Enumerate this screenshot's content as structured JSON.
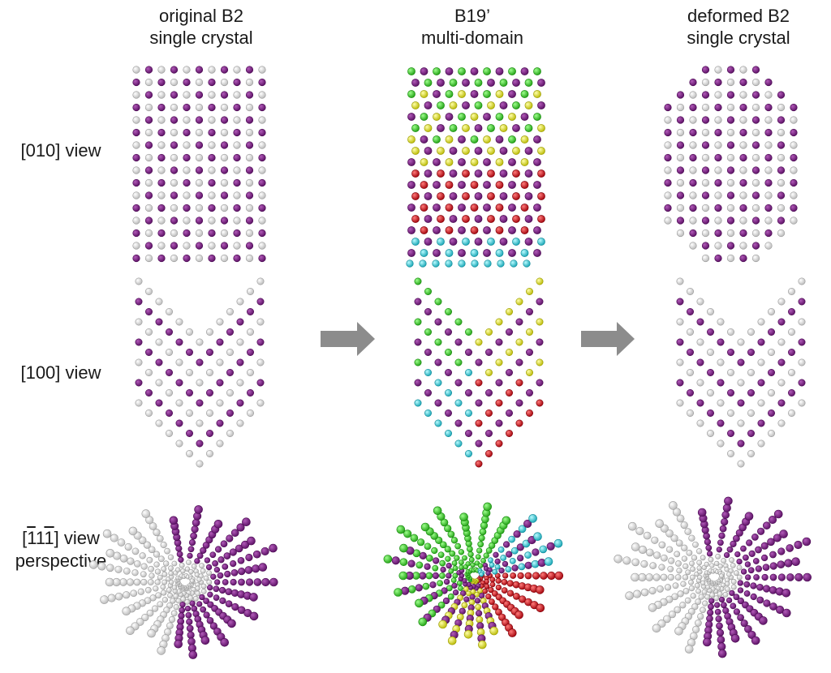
{
  "columns": [
    {
      "line1": "original B2",
      "line2": "single crystal"
    },
    {
      "line1": "B19’",
      "line2": "multi-domain"
    },
    {
      "line1": "deformed B2",
      "line2": "single crystal"
    }
  ],
  "rows": {
    "view_010": "[010] view",
    "view_100": "[100] view",
    "view_111_open": "[",
    "view_111_bar1": "1",
    "view_111_mid": "1",
    "view_111_bar2": "1",
    "view_111_close": "] view",
    "view_111_line2": "perspective"
  },
  "colors": {
    "ni_atom": "#7a1f82",
    "ti_atom": "#f2f2f2",
    "domain_green": "#39e02a",
    "domain_yellow": "#f2f21a",
    "domain_red": "#e8141e",
    "domain_cyan": "#33d6e6",
    "arrow": "#8c8c8c"
  },
  "icons": {
    "transition_arrow": "right-arrow-icon"
  }
}
